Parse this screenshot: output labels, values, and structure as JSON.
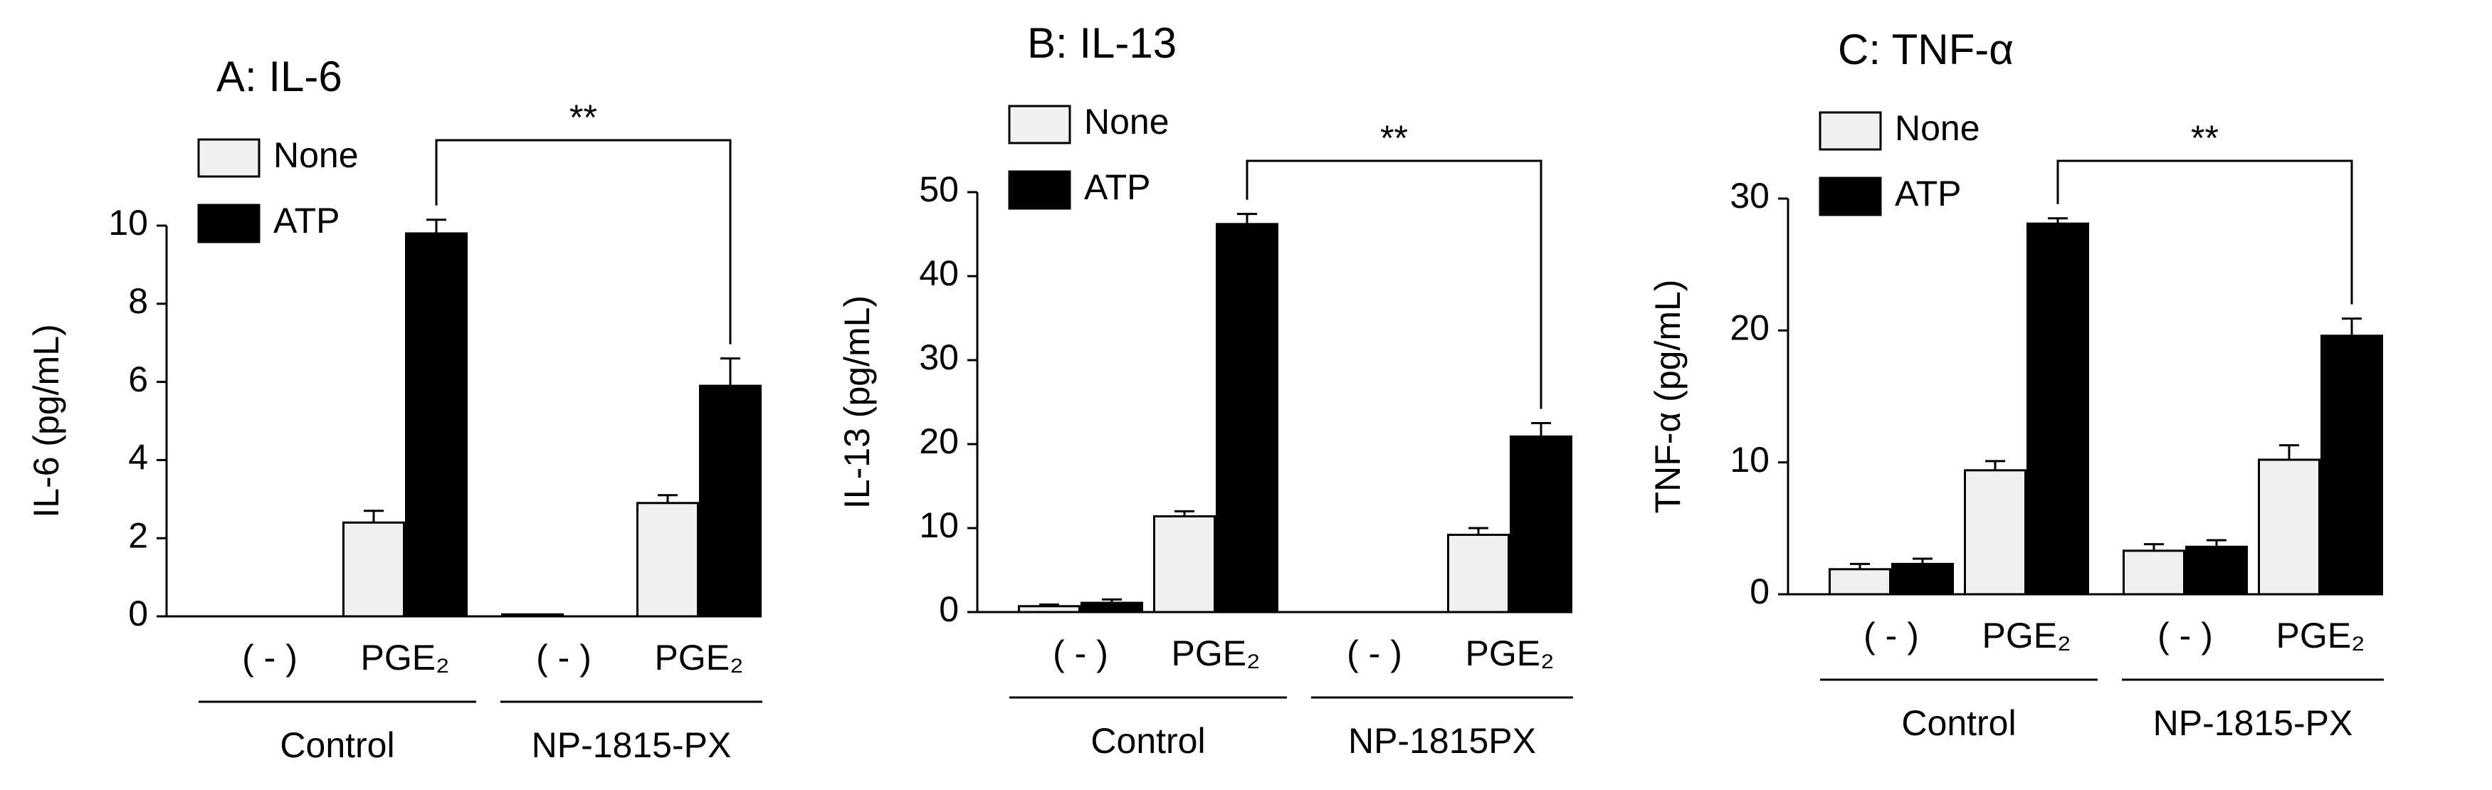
{
  "chart_data": [
    {
      "type": "bar",
      "title": "A: IL-6",
      "y_label": "IL-6 (pg/mL)",
      "categories": [
        "( - )",
        "PGE₂",
        "( - )",
        "PGE₂"
      ],
      "groups": [
        "Control",
        "NP-1815-PX"
      ],
      "series": [
        {
          "name": "None",
          "color": "#f0f0f0",
          "values": [
            0,
            2.4,
            0.05,
            2.9
          ],
          "errors": [
            null,
            0.3,
            null,
            0.2
          ]
        },
        {
          "name": "ATP",
          "color": "#000000",
          "values": [
            0,
            9.8,
            0,
            5.9
          ],
          "errors": [
            null,
            0.35,
            null,
            0.7
          ]
        }
      ],
      "ylim": [
        0,
        10
      ],
      "yticks": [
        0,
        2,
        4,
        6,
        8,
        10
      ],
      "annotation": "**"
    },
    {
      "type": "bar",
      "title": "B: IL-13",
      "y_label": "IL-13 (pg/mL)",
      "categories": [
        "( - )",
        "PGE₂",
        "( - )",
        "PGE₂"
      ],
      "groups": [
        "Control",
        "NP-1815PX"
      ],
      "series": [
        {
          "name": "None",
          "color": "#f0f0f0",
          "values": [
            0.7,
            11.4,
            0,
            9.2
          ],
          "errors": [
            0.2,
            0.6,
            null,
            0.8
          ]
        },
        {
          "name": "ATP",
          "color": "#000000",
          "values": [
            1.1,
            46.2,
            0,
            20.9
          ],
          "errors": [
            0.4,
            1.2,
            null,
            1.6
          ]
        }
      ],
      "ylim": [
        0,
        50
      ],
      "yticks": [
        0,
        10,
        20,
        30,
        40,
        50
      ],
      "annotation": "**"
    },
    {
      "type": "bar",
      "title": "C: TNF-α",
      "y_label": "TNF-α (pg/mL)",
      "categories": [
        "( - )",
        "PGE₂",
        "( - )",
        "PGE₂"
      ],
      "groups": [
        "Control",
        "NP-1815-PX"
      ],
      "series": [
        {
          "name": "None",
          "color": "#f0f0f0",
          "values": [
            1.9,
            9.4,
            3.3,
            10.2
          ],
          "errors": [
            0.4,
            0.7,
            0.5,
            1.1
          ]
        },
        {
          "name": "ATP",
          "color": "#000000",
          "values": [
            2.3,
            28.1,
            3.6,
            19.6
          ],
          "errors": [
            0.4,
            0.4,
            0.5,
            1.3
          ]
        }
      ],
      "ylim": [
        0,
        30
      ],
      "yticks": [
        0,
        10,
        20,
        30
      ],
      "annotation": "**"
    }
  ]
}
